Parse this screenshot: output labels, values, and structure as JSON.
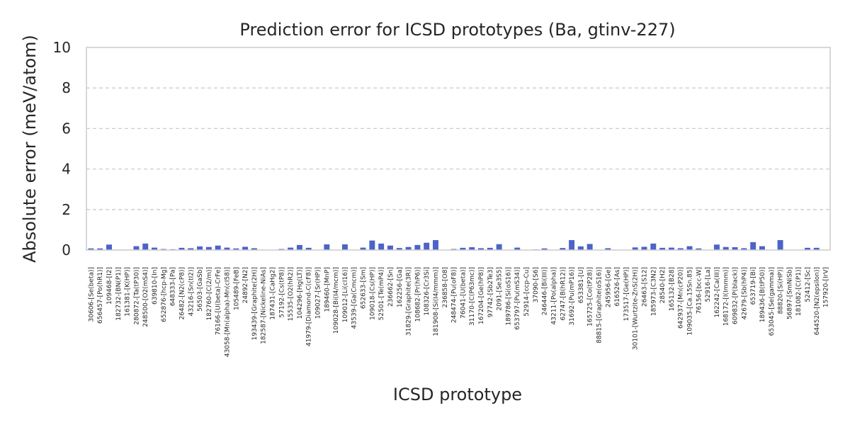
{
  "chart_data": {
    "type": "bar",
    "title": "Prediction error for ICSD prototypes (Ba, gtinv-227)",
    "xlabel": "ICSD prototype",
    "ylabel": "Absolute error (meV/atom)",
    "ylim": [
      0,
      10
    ],
    "yticks": [
      0,
      2,
      4,
      6,
      8,
      10
    ],
    "grid": "y-dashed",
    "bar_color": "#4c63c9",
    "categories": [
      "30606-[Se(beta)]",
      "656457-[Po(hR1)]",
      "109468-[I2]",
      "182732-[BN(P1)]",
      "161381-[K(HP)]",
      "280872-[Ta(tP30)]",
      "248500-[O2(mS4)]",
      "639810-[In]",
      "652876-[hcp-Mg]",
      "648333-[Pa]",
      "26482-[N2(cP8)]",
      "43216-[Sn(tI2)]",
      "56503-[GaSb]",
      "182760-[C(2/m)]",
      "76166-[U(beta)-CrFe]",
      "43058-[Mn(alpha)-Mn(cI58)]",
      "105489-[FeB]",
      "24892-[N2]",
      "193439-[Graphite(2H)]",
      "182587-[Nickeline-NiAs]",
      "187431-[CaHg2]",
      "57192-[Cs(tP8)]",
      "15535-[O2(hR2)]",
      "104296-[Hg(LT)]",
      "41979-[Diamond-C(cF8)]",
      "109027-[Sr(HP)]",
      "189460-[MnP]",
      "109028-[Bi(I4/mcm)]",
      "109012-[Li(cI16)]",
      "43539-[Ga(Cmcm)]",
      "652633-[Sm]",
      "109018-[Cs(HP)]",
      "52501-[Te(mP4)]",
      "236662-[Sn]",
      "162256-[Ga]",
      "31829-[Graphite(3R)]",
      "108682-[Pr(hP6)]",
      "108326-[Cr3Si]",
      "181908-[Si(I4/mmm)]",
      "236858-[O8]",
      "248474-[Pu(oF8)]",
      "76041-[U(beta)]",
      "31170-[C(P63mc)]",
      "167204-[Ge(hP8)]",
      "97742-[Sb2Te3]",
      "2091-[Se3S5]",
      "189786-[Si(oS16)]",
      "653797-[Pu(mS34)]",
      "52914-[ccp-Cu]",
      "37090-[S6]",
      "246446-[Bi(III)]",
      "43211-[Po(alpha)]",
      "62747-[B(hR12)]",
      "31692-[Pu(mP16)]",
      "653381-[U]",
      "165725-[Co(tP28)]",
      "88815-[Graphite(oS16)]",
      "245956-[Ge]",
      "616526-[As]",
      "173517-[Ge(HP)]",
      "30101-[Wurtzite-ZnS(2H)]",
      "26463-[S12]",
      "185973-[C3N2]",
      "28540-[H2]",
      "165132-[B28]",
      "642937-[Mn(cP20)]",
      "109035-[Ca.15Sn.85]",
      "76156-[bcc-W]",
      "52916-[La]",
      "162242-[Ca(III)]",
      "168172-[I(Immm)]",
      "609832-[P(black)]",
      "42679-[Sb(hP4)]",
      "653719-[Bi]",
      "189436-[B(tP50)]",
      "653045-[Se(gamma)]",
      "88820-[Si(HP)]",
      "56897-[SmNiSb]",
      "181082-[C(P1)]",
      "52412-[Sc]",
      "644520-[N2(epsilon)]",
      "157920-[IrV]"
    ],
    "values": [
      0.08,
      0.08,
      0.27,
      0.02,
      0.02,
      0.19,
      0.32,
      0.12,
      0.05,
      0.04,
      0.11,
      0.09,
      0.18,
      0.15,
      0.22,
      0.12,
      0.08,
      0.16,
      0.09,
      0.01,
      0.01,
      0.05,
      0.12,
      0.25,
      0.11,
      0.01,
      0.28,
      0.01,
      0.28,
      0.01,
      0.12,
      0.47,
      0.32,
      0.22,
      0.1,
      0.15,
      0.25,
      0.36,
      0.49,
      0.01,
      0.05,
      0.11,
      0.14,
      0.09,
      0.11,
      0.29,
      0.01,
      0.12,
      0.01,
      0.03,
      0.08,
      0.01,
      0.1,
      0.49,
      0.18,
      0.3,
      0.01,
      0.09,
      0.01,
      0.01,
      0.13,
      0.16,
      0.32,
      0.11,
      0.12,
      0.09,
      0.19,
      0.08,
      0.01,
      0.27,
      0.15,
      0.14,
      0.09,
      0.39,
      0.19,
      0.01,
      0.49,
      0.01,
      0.01,
      0.11,
      0.11,
      0.01
    ]
  }
}
